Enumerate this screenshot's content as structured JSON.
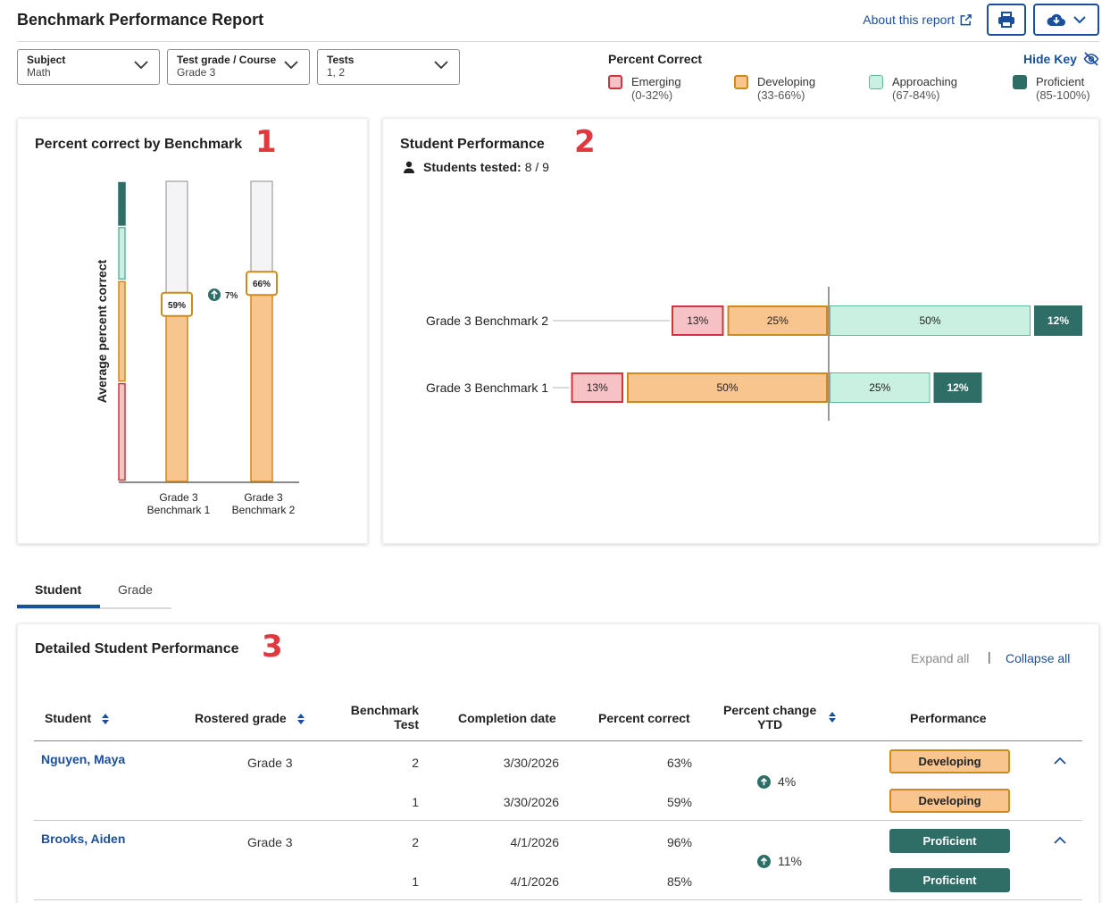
{
  "header": {
    "title": "Benchmark Performance Report",
    "about_label": "About this report"
  },
  "filters": [
    {
      "label": "Subject",
      "value": "Math"
    },
    {
      "label": "Test grade / Course",
      "value": "Grade 3"
    },
    {
      "label": "Tests",
      "value": "1, 2"
    }
  ],
  "key": {
    "title": "Percent Correct",
    "hide_label": "Hide Key",
    "items": [
      {
        "name": "Emerging",
        "range": "(0-32%)",
        "color": "#f6c2c6",
        "border": "#d0353f"
      },
      {
        "name": "Developing",
        "range": "(33-66%)",
        "color": "#f8c58e",
        "border": "#cf8a1c"
      },
      {
        "name": "Approaching",
        "range": "(67-84%)",
        "color": "#c9f0e1",
        "border": "#63b59a"
      },
      {
        "name": "Proficient",
        "range": "(85-100%)",
        "color": "#2e6e66",
        "border": "#2e6e66"
      }
    ]
  },
  "panel1": {
    "title": "Percent correct by Benchmark",
    "number": "1",
    "ylabel": "Average percent correct",
    "change_label": "7%"
  },
  "panel2": {
    "title": "Student Performance",
    "number": "2",
    "tested_label": "Students tested:",
    "tested_value": "8 / 9"
  },
  "chart_data": [
    {
      "type": "bar",
      "title": "Percent correct by Benchmark",
      "ylabel": "Average percent correct",
      "categories": [
        "Grade 3 Benchmark 1",
        "Grade 3 Benchmark 2"
      ],
      "values": [
        59,
        66
      ],
      "value_labels": [
        "59%",
        "66%"
      ],
      "ylim": [
        0,
        100
      ]
    },
    {
      "type": "bar",
      "stacked": true,
      "orientation": "horizontal",
      "title": "Student Performance",
      "categories": [
        "Grade 3 Benchmark 2",
        "Grade 3 Benchmark 1"
      ],
      "series": [
        {
          "name": "Emerging",
          "values": [
            13,
            13
          ]
        },
        {
          "name": "Developing",
          "values": [
            25,
            50
          ]
        },
        {
          "name": "Approaching",
          "values": [
            50,
            25
          ]
        },
        {
          "name": "Proficient",
          "values": [
            12,
            12
          ]
        }
      ]
    }
  ],
  "tabs": [
    {
      "label": "Student",
      "active": true
    },
    {
      "label": "Grade",
      "active": false
    }
  ],
  "detail": {
    "title": "Detailed Student Performance",
    "number": "3",
    "expand_all": "Expand all",
    "separator": "|",
    "collapse_all": "Collapse all",
    "columns": {
      "student": "Student",
      "rostered_grade": "Rostered grade",
      "benchmark_line1": "Benchmark",
      "benchmark_line2": "Test",
      "completion_date": "Completion date",
      "percent_correct": "Percent correct",
      "ytd_line1": "Percent change",
      "ytd_line2": "YTD",
      "performance": "Performance"
    },
    "students": [
      {
        "name": "Nguyen, Maya",
        "grade": "Grade 3",
        "change": "4%",
        "tests": [
          {
            "test": "2",
            "date": "3/30/2026",
            "percent": "63%",
            "performance": "Developing"
          },
          {
            "test": "1",
            "date": "3/30/2026",
            "percent": "59%",
            "performance": "Developing"
          }
        ]
      },
      {
        "name": "Brooks, Aiden",
        "grade": "Grade 3",
        "change": "11%",
        "tests": [
          {
            "test": "2",
            "date": "4/1/2026",
            "percent": "96%",
            "performance": "Proficient"
          },
          {
            "test": "1",
            "date": "4/1/2026",
            "percent": "85%",
            "performance": "Proficient"
          }
        ]
      }
    ]
  }
}
